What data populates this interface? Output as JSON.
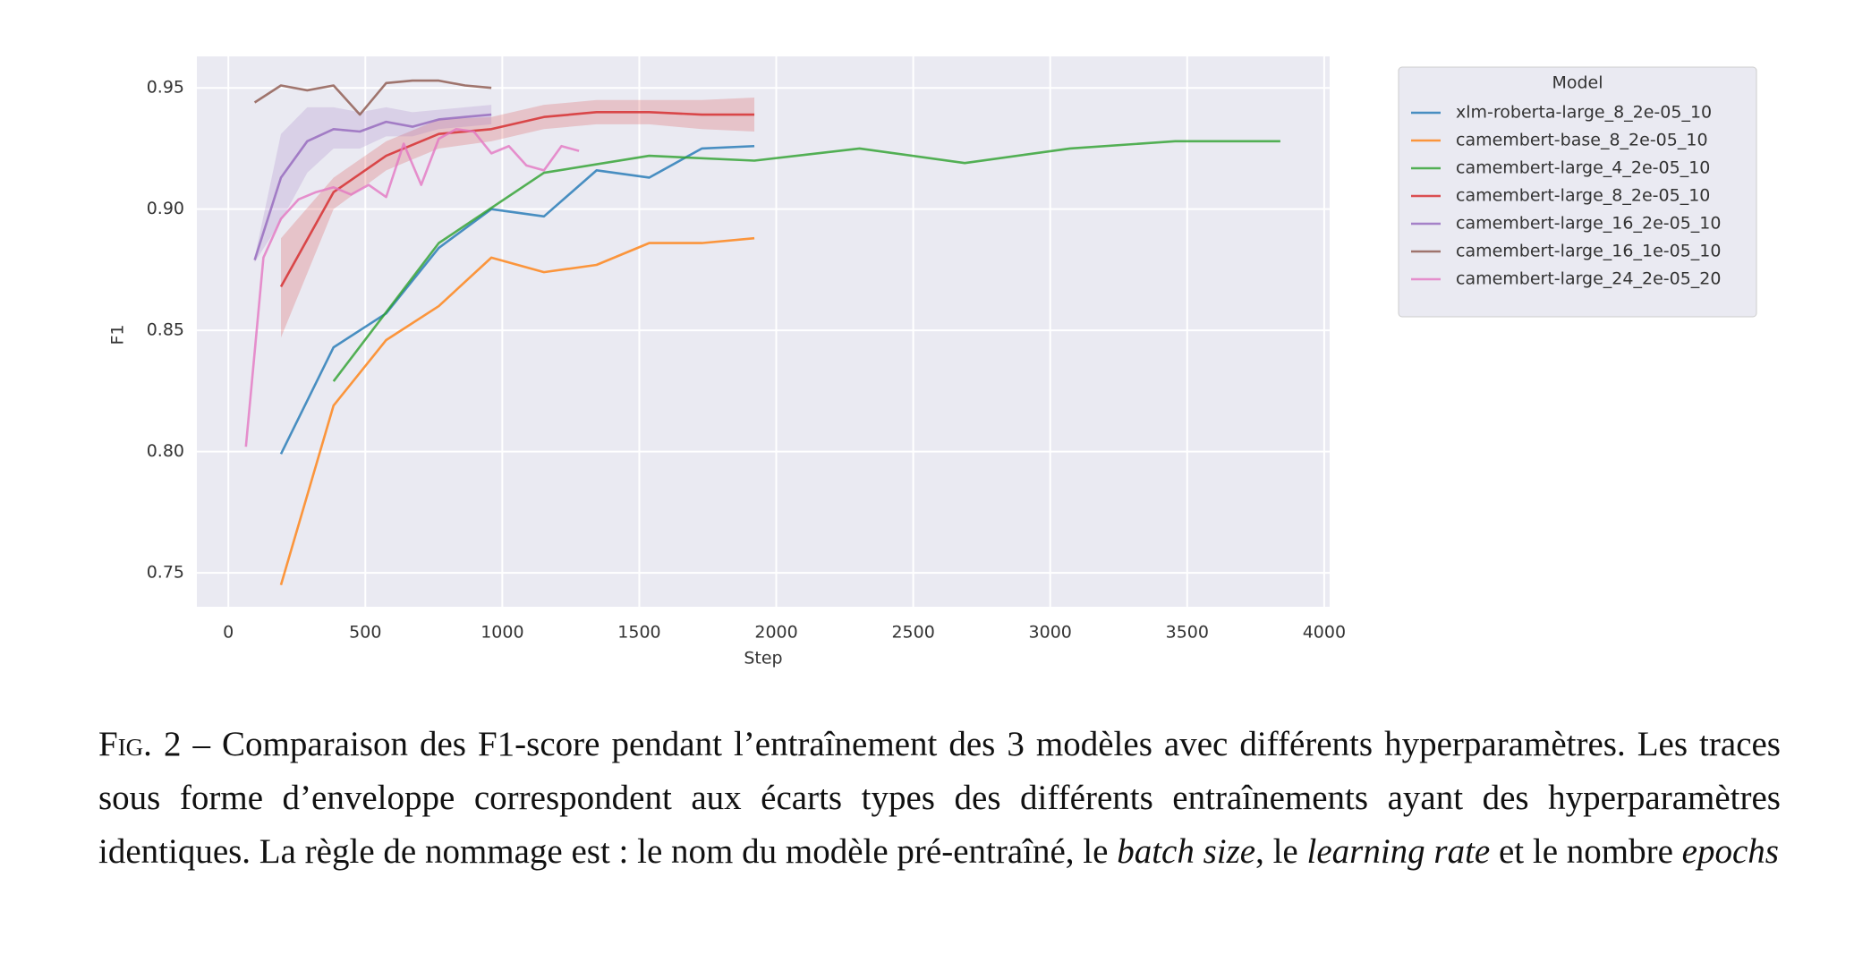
{
  "chart_data": {
    "type": "line",
    "xlabel": "Step",
    "ylabel": "F1",
    "legend_title": "Model",
    "legend": "outside-right",
    "grid": true,
    "xlim": [
      -115,
      4020
    ],
    "ylim": [
      0.736,
      0.963
    ],
    "xticks": [
      0,
      500,
      1000,
      1500,
      2000,
      2500,
      3000,
      3500,
      4000
    ],
    "yticks": [
      0.75,
      {
        "value": 0.8,
        "label": "0.80"
      },
      0.85,
      {
        "value": 0.9,
        "label": "0.90"
      },
      0.95
    ],
    "series": [
      {
        "name": "xlm-roberta-large_8_2e-05_10",
        "color": "#1f77b4",
        "x": [
          192,
          384,
          576,
          768,
          960,
          1152,
          1344,
          1536,
          1728,
          1920
        ],
        "values": [
          0.799,
          0.843,
          0.857,
          0.884,
          0.9,
          0.897,
          0.916,
          0.913,
          0.925,
          0.926
        ]
      },
      {
        "name": "camembert-base_8_2e-05_10",
        "color": "#ff7f0e",
        "x": [
          192,
          384,
          576,
          768,
          960,
          1152,
          1344,
          1536,
          1728,
          1920
        ],
        "values": [
          0.745,
          0.819,
          0.846,
          0.86,
          0.88,
          0.874,
          0.877,
          0.886,
          0.886,
          0.888
        ]
      },
      {
        "name": "camembert-large_4_2e-05_10",
        "color": "#2ca02c",
        "x": [
          384,
          768,
          1152,
          1536,
          1920,
          2304,
          2688,
          3072,
          3456,
          3840
        ],
        "values": [
          0.829,
          0.886,
          0.915,
          0.922,
          0.92,
          0.925,
          0.919,
          0.925,
          0.928,
          0.928
        ]
      },
      {
        "name": "camembert-large_8_2e-05_10",
        "color": "#d62728",
        "x": [
          192,
          384,
          576,
          768,
          960,
          1152,
          1344,
          1536,
          1728,
          1920
        ],
        "values": [
          0.868,
          0.907,
          0.922,
          0.931,
          0.933,
          0.938,
          0.94,
          0.94,
          0.939,
          0.939
        ],
        "lower": [
          0.847,
          0.9,
          0.916,
          0.925,
          0.928,
          0.933,
          0.935,
          0.935,
          0.933,
          0.932
        ],
        "upper": [
          0.888,
          0.913,
          0.928,
          0.937,
          0.938,
          0.943,
          0.945,
          0.945,
          0.945,
          0.946
        ]
      },
      {
        "name": "camembert-large_16_2e-05_10",
        "color": "#9467bd",
        "x": [
          96,
          192,
          288,
          384,
          480,
          576,
          672,
          768,
          864,
          960
        ],
        "values": [
          0.879,
          0.913,
          0.928,
          0.933,
          0.932,
          0.936,
          0.934,
          0.937,
          0.938,
          0.939
        ],
        "lower": [
          0.878,
          0.895,
          0.915,
          0.925,
          0.925,
          0.93,
          0.93,
          0.933,
          0.934,
          0.935
        ],
        "upper": [
          0.88,
          0.931,
          0.942,
          0.942,
          0.94,
          0.942,
          0.94,
          0.941,
          0.942,
          0.943
        ]
      },
      {
        "name": "camembert-large_16_1e-05_10",
        "color": "#8c564b",
        "x": [
          96,
          192,
          288,
          384,
          480,
          576,
          672,
          768,
          864,
          960
        ],
        "values": [
          0.944,
          0.951,
          0.949,
          0.951,
          0.939,
          0.952,
          0.953,
          0.953,
          0.951,
          0.95
        ]
      },
      {
        "name": "camembert-large_24_2e-05_20",
        "color": "#e377c2",
        "x": [
          64,
          128,
          192,
          256,
          320,
          384,
          448,
          512,
          576,
          640,
          704,
          768,
          832,
          896,
          960,
          1024,
          1088,
          1152,
          1216,
          1280
        ],
        "values": [
          0.802,
          0.88,
          0.896,
          0.904,
          0.907,
          0.909,
          0.906,
          0.91,
          0.905,
          0.927,
          0.91,
          0.929,
          0.933,
          0.932,
          0.923,
          0.926,
          0.918,
          0.916,
          0.926,
          0.924
        ]
      }
    ]
  },
  "caption": {
    "label": "Fig. 2",
    "parts": [
      {
        "text": " – Comparaison des F1-score pendant l’entraînement des 3 modèles avec différents hyperparamètres. Les traces sous forme d’enveloppe correspondent aux écarts types des différents entraînements ayant des hyperparamètres identiques. La règle de nommage est : le nom du modèle pré-entraîné, le ",
        "style": "normal"
      },
      {
        "text": "batch size",
        "style": "italic"
      },
      {
        "text": ", le ",
        "style": "normal"
      },
      {
        "text": "learning rate",
        "style": "italic"
      },
      {
        "text": " et le nombre ",
        "style": "normal"
      },
      {
        "text": "epochs",
        "style": "italic"
      }
    ]
  }
}
